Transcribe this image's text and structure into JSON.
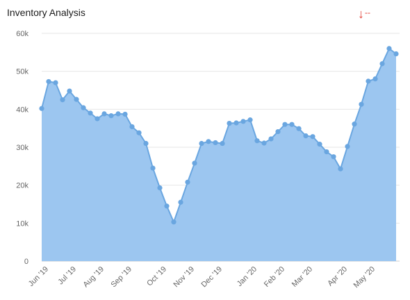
{
  "widget": {
    "title": "Inventory Analysis",
    "trend": {
      "icon": "arrow-down-icon",
      "value": "--",
      "color": "#e03a2f"
    }
  },
  "chart_data": {
    "type": "area",
    "title": "Inventory Analysis",
    "xlabel": "",
    "ylabel": "",
    "ylim": [
      0,
      60000
    ],
    "yticks": [
      0,
      10000,
      20000,
      30000,
      40000,
      50000,
      60000
    ],
    "ytick_labels": [
      "0",
      "10k",
      "20k",
      "30k",
      "40k",
      "50k",
      "60k"
    ],
    "x_tick_labels": [
      "Jun '19",
      "Jul '19",
      "Aug '19",
      "Sep '19",
      "Oct '19",
      "Nov '19",
      "Dec '19",
      "Jan '20",
      "Feb '20",
      "Mar '20",
      "Apr '20",
      "May '20"
    ],
    "x_tick_point_index": [
      1,
      5,
      9,
      13,
      18,
      22,
      26,
      31,
      35,
      39,
      44,
      48
    ],
    "grid": true,
    "colors": {
      "line": "#6aa6e0",
      "fill": "#9cc6f0",
      "marker": "#6aa6e0",
      "grid": "#e6e6e6"
    },
    "series": [
      {
        "values": [
          40200,
          47300,
          47000,
          42500,
          44800,
          42600,
          40400,
          39000,
          37500,
          38800,
          38300,
          38800,
          38700,
          35400,
          33800,
          31000,
          24500,
          19300,
          14500,
          10300,
          15500,
          20800,
          25800,
          31000,
          31500,
          31200,
          31000,
          36300,
          36400,
          36800,
          37200,
          31700,
          31100,
          32200,
          34100,
          36000,
          36000,
          34900,
          33000,
          32800,
          30800,
          28800,
          27500,
          24300,
          30200,
          36100,
          41300,
          47400,
          48000,
          52000,
          56000,
          54600
        ]
      }
    ]
  }
}
